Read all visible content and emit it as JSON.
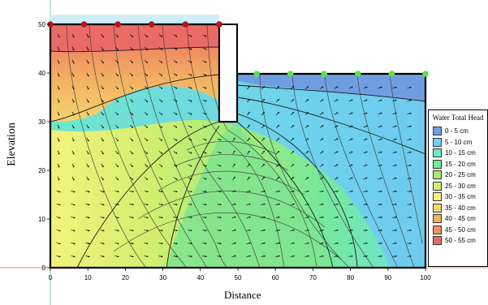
{
  "chart_data": {
    "type": "contour",
    "title": "",
    "xlabel": "Distance",
    "ylabel": "Elevation",
    "xlim": [
      0,
      100
    ],
    "ylim": [
      0,
      50
    ],
    "x_ticks": [
      "0",
      "10",
      "20",
      "30",
      "40",
      "50",
      "60",
      "70",
      "80",
      "90",
      "100"
    ],
    "y_ticks": [
      "0",
      "10",
      "20",
      "30",
      "40",
      "50"
    ],
    "legend": {
      "title": "Water Total Head",
      "placement": "right",
      "items": [
        {
          "label": "0 - 5 cm",
          "color": "#6f9ee0"
        },
        {
          "label": "5 - 10 cm",
          "color": "#6ed3ec"
        },
        {
          "label": "10 - 15 cm",
          "color": "#6fe6c8"
        },
        {
          "label": "15 - 20 cm",
          "color": "#76e89a"
        },
        {
          "label": "20 - 25 cm",
          "color": "#a3ea79"
        },
        {
          "label": "25 - 30 cm",
          "color": "#d1ef6f"
        },
        {
          "label": "30 - 35 cm",
          "color": "#f4f27a"
        },
        {
          "label": "35 - 40 cm",
          "color": "#f5d46e"
        },
        {
          "label": "40 - 45 cm",
          "color": "#f2b063"
        },
        {
          "label": "45 - 50 cm",
          "color": "#ef9162"
        },
        {
          "label": "50 - 55 cm",
          "color": "#ea6a66"
        }
      ]
    },
    "upstream_nodes_x": [
      0,
      9,
      18,
      27,
      36,
      45,
      54
    ],
    "downstream_nodes_x": [
      55,
      64,
      73,
      82,
      91,
      100
    ]
  },
  "labels": {
    "xlabel": "Distance",
    "ylabel": "Elevation"
  }
}
